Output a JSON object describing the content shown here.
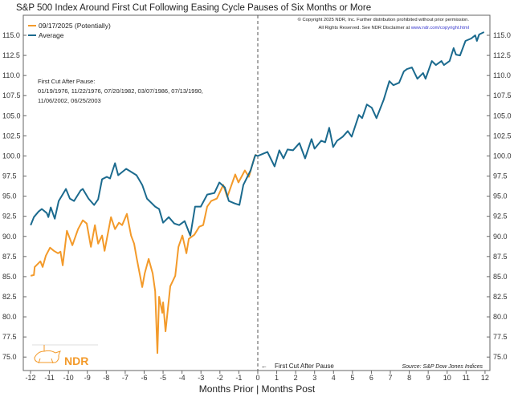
{
  "chart_data": {
    "type": "line",
    "title": "S&P 500 Index Around First Cut Following Easing Cycle Pauses of Six Months or More",
    "xlabel": "Months Prior | Months Post",
    "ylabel": "",
    "xlim": [
      -12,
      12
    ],
    "ylim": [
      73.5,
      117
    ],
    "x_ticks": [
      "-12",
      "-11",
      "-10",
      "-9",
      "-8",
      "-7",
      "-6",
      "-5",
      "-4",
      "-3",
      "-2",
      "-1",
      "0",
      "1",
      "2",
      "3",
      "4",
      "5",
      "6",
      "7",
      "8",
      "9",
      "10",
      "11",
      "12"
    ],
    "y_ticks": [
      "75.0",
      "77.5",
      "80.0",
      "82.5",
      "85.0",
      "87.5",
      "90.0",
      "92.5",
      "95.0",
      "97.5",
      "100.0",
      "102.5",
      "105.0",
      "107.5",
      "110.0",
      "112.5",
      "115.0"
    ],
    "grid": false,
    "legend_position": "top-left",
    "series": [
      {
        "name": "09/17/2025 (Potentially)",
        "color": "#f39a2a",
        "points": [
          [
            -11.99,
            85.1
          ],
          [
            -11.82,
            85.2
          ],
          [
            -11.78,
            86.2
          ],
          [
            -11.48,
            86.9
          ],
          [
            -11.36,
            86.2
          ],
          [
            -11.19,
            87.6
          ],
          [
            -10.97,
            88.6
          ],
          [
            -10.76,
            88.2
          ],
          [
            -10.55,
            87.9
          ],
          [
            -10.42,
            88.1
          ],
          [
            -10.3,
            86.4
          ],
          [
            -10.08,
            90.7
          ],
          [
            -9.79,
            88.9
          ],
          [
            -9.49,
            90.9
          ],
          [
            -9.24,
            92.0
          ],
          [
            -9.03,
            91.6
          ],
          [
            -8.81,
            88.7
          ],
          [
            -8.6,
            91.4
          ],
          [
            -8.43,
            89.1
          ],
          [
            -8.22,
            90.1
          ],
          [
            -8.09,
            88.2
          ],
          [
            -7.75,
            92.4
          ],
          [
            -7.54,
            90.9
          ],
          [
            -7.33,
            91.7
          ],
          [
            -7.16,
            91.4
          ],
          [
            -6.91,
            92.8
          ],
          [
            -6.69,
            90.1
          ],
          [
            -6.53,
            89.1
          ],
          [
            -6.4,
            87.4
          ],
          [
            -6.1,
            83.7
          ],
          [
            -5.97,
            85.4
          ],
          [
            -5.76,
            87.2
          ],
          [
            -5.55,
            85.4
          ],
          [
            -5.42,
            83.2
          ],
          [
            -5.3,
            75.5
          ],
          [
            -5.21,
            82.5
          ],
          [
            -5.04,
            80.5
          ],
          [
            -5.0,
            81.8
          ],
          [
            -4.87,
            78.2
          ],
          [
            -4.62,
            83.8
          ],
          [
            -4.36,
            85.1
          ],
          [
            -4.19,
            88.7
          ],
          [
            -3.98,
            90.1
          ],
          [
            -3.77,
            87.9
          ],
          [
            -3.64,
            89.7
          ],
          [
            -3.35,
            90.2
          ],
          [
            -3.09,
            91.2
          ],
          [
            -2.88,
            91.4
          ],
          [
            -2.67,
            93.7
          ],
          [
            -2.46,
            94.4
          ],
          [
            -2.16,
            94.7
          ],
          [
            -1.82,
            96.4
          ],
          [
            -1.61,
            94.9
          ],
          [
            -1.19,
            97.7
          ],
          [
            -1.02,
            96.7
          ],
          [
            -0.68,
            98.2
          ],
          [
            -0.47,
            97.4
          ],
          [
            -0.17,
            99.9
          ],
          [
            -0.08,
            100.2
          ]
        ]
      },
      {
        "name": "Average",
        "color": "#1b6a8e",
        "points": [
          [
            -11.99,
            91.4
          ],
          [
            -11.82,
            92.4
          ],
          [
            -11.57,
            93.1
          ],
          [
            -11.4,
            93.4
          ],
          [
            -11.14,
            92.9
          ],
          [
            -11.06,
            92.4
          ],
          [
            -10.93,
            93.6
          ],
          [
            -10.72,
            92.2
          ],
          [
            -10.51,
            94.4
          ],
          [
            -10.13,
            95.9
          ],
          [
            -9.92,
            94.7
          ],
          [
            -9.7,
            94.4
          ],
          [
            -9.36,
            95.7
          ],
          [
            -9.24,
            95.9
          ],
          [
            -8.94,
            94.7
          ],
          [
            -8.64,
            93.9
          ],
          [
            -8.43,
            94.6
          ],
          [
            -8.22,
            97.1
          ],
          [
            -7.97,
            97.4
          ],
          [
            -7.8,
            97.2
          ],
          [
            -7.54,
            99.1
          ],
          [
            -7.37,
            97.6
          ],
          [
            -6.95,
            98.4
          ],
          [
            -6.74,
            98.1
          ],
          [
            -6.4,
            97.6
          ],
          [
            -6.1,
            96.4
          ],
          [
            -5.85,
            94.7
          ],
          [
            -5.42,
            93.7
          ],
          [
            -5.21,
            93.4
          ],
          [
            -5.0,
            91.7
          ],
          [
            -4.7,
            92.4
          ],
          [
            -4.41,
            91.6
          ],
          [
            -4.15,
            91.4
          ],
          [
            -3.86,
            91.9
          ],
          [
            -3.56,
            90.1
          ],
          [
            -3.31,
            93.7
          ],
          [
            -3.01,
            93.7
          ],
          [
            -2.67,
            95.2
          ],
          [
            -2.29,
            95.4
          ],
          [
            -2.03,
            96.7
          ],
          [
            -1.74,
            96.1
          ],
          [
            -1.53,
            94.4
          ],
          [
            -1.23,
            94.1
          ],
          [
            -0.97,
            93.9
          ],
          [
            -0.76,
            96.4
          ],
          [
            -0.38,
            98.2
          ],
          [
            -0.13,
            100.1
          ],
          [
            0,
            100
          ],
          [
            0.51,
            100.5
          ],
          [
            0.89,
            98.7
          ],
          [
            1.14,
            100.7
          ],
          [
            1.36,
            99.7
          ],
          [
            1.57,
            100.8
          ],
          [
            1.86,
            100.7
          ],
          [
            2.2,
            101.6
          ],
          [
            2.5,
            99.7
          ],
          [
            2.84,
            102.1
          ],
          [
            3.0,
            100.9
          ],
          [
            3.35,
            101.9
          ],
          [
            3.56,
            101.7
          ],
          [
            3.77,
            103.5
          ],
          [
            3.98,
            101.1
          ],
          [
            4.19,
            101.9
          ],
          [
            4.49,
            102.4
          ],
          [
            4.75,
            103.1
          ],
          [
            4.96,
            102.4
          ],
          [
            5.34,
            105.1
          ],
          [
            5.51,
            104.7
          ],
          [
            5.76,
            106.4
          ],
          [
            6.02,
            106.0
          ],
          [
            6.27,
            104.7
          ],
          [
            6.65,
            107.0
          ],
          [
            6.95,
            109.3
          ],
          [
            7.16,
            108.8
          ],
          [
            7.46,
            109.1
          ],
          [
            7.71,
            110.5
          ],
          [
            7.88,
            110.8
          ],
          [
            8.14,
            111.0
          ],
          [
            8.43,
            109.6
          ],
          [
            8.73,
            110.3
          ],
          [
            8.86,
            109.6
          ],
          [
            9.19,
            111.8
          ],
          [
            9.41,
            111.3
          ],
          [
            9.7,
            111.8
          ],
          [
            9.83,
            111.3
          ],
          [
            10.13,
            111.8
          ],
          [
            10.34,
            113.4
          ],
          [
            10.47,
            112.6
          ],
          [
            10.68,
            112.5
          ],
          [
            10.97,
            114.3
          ],
          [
            11.27,
            114.6
          ],
          [
            11.48,
            115.0
          ],
          [
            11.57,
            114.3
          ],
          [
            11.69,
            115.1
          ],
          [
            11.95,
            115.4
          ]
        ]
      }
    ],
    "annotations": {
      "first_cut_heading": "First Cut After Pause:",
      "first_cut_dates_1": "01/19/1976, 11/22/1976, 07/20/1982, 03/07/1986, 07/13/1990,",
      "first_cut_dates_2": "11/06/2002, 06/25/2003",
      "vline_label": "First Cut After Pause",
      "copyright_1": "© Copyright 2025 NDR, Inc. Further distribution prohibited without prior permission.",
      "copyright_2": "All Rights Reserved. See NDR Disclaimer at ",
      "copyright_link": "www.ndr.com/copyright.html",
      "source": "Source:  S&P Dow Jones Indices",
      "logo_text": "NDR"
    }
  }
}
